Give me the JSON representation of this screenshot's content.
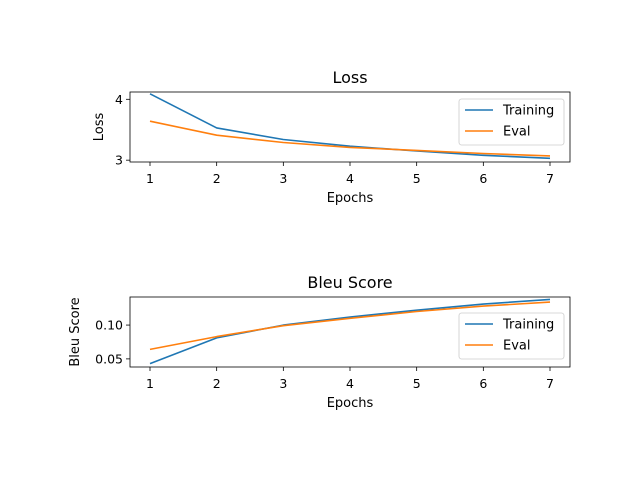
{
  "chart_data": [
    {
      "type": "line",
      "title": "Loss",
      "xlabel": "Epochs",
      "ylabel": "Loss",
      "x": [
        1,
        2,
        3,
        4,
        5,
        6,
        7
      ],
      "xticks": [
        "1",
        "2",
        "3",
        "4",
        "5",
        "6",
        "7"
      ],
      "xlim": [
        0.7,
        7.3
      ],
      "ylim": [
        2.97,
        4.12
      ],
      "yticks": [
        3,
        4
      ],
      "ytick_labels": [
        "3",
        "4"
      ],
      "legend_position": "upper-right",
      "series": [
        {
          "name": "Training",
          "color": "#1f77b4",
          "values": [
            4.09,
            3.53,
            3.34,
            3.23,
            3.15,
            3.08,
            3.03
          ]
        },
        {
          "name": "Eval",
          "color": "#ff7f0e",
          "values": [
            3.64,
            3.41,
            3.29,
            3.21,
            3.16,
            3.11,
            3.07
          ]
        }
      ]
    },
    {
      "type": "line",
      "title": "Bleu Score",
      "xlabel": "Epochs",
      "ylabel": "Bleu Score",
      "x": [
        1,
        2,
        3,
        4,
        5,
        6,
        7
      ],
      "xticks": [
        "1",
        "2",
        "3",
        "4",
        "5",
        "6",
        "7"
      ],
      "xlim": [
        0.7,
        7.3
      ],
      "ylim": [
        0.038,
        0.1415
      ],
      "yticks": [
        0.05,
        0.1
      ],
      "ytick_labels": [
        "0.05",
        "0.10"
      ],
      "legend_position": "lower-right",
      "series": [
        {
          "name": "Training",
          "color": "#1f77b4",
          "values": [
            0.043,
            0.081,
            0.1,
            0.112,
            0.122,
            0.131,
            0.138
          ]
        },
        {
          "name": "Eval",
          "color": "#ff7f0e",
          "values": [
            0.064,
            0.083,
            0.099,
            0.11,
            0.12,
            0.128,
            0.134
          ]
        }
      ]
    }
  ]
}
